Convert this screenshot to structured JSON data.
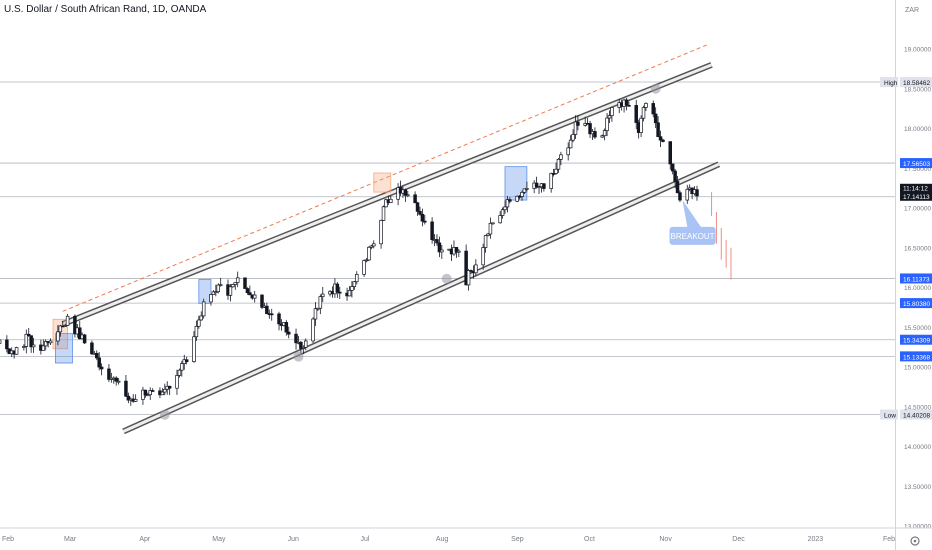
{
  "header": {
    "title": "U.S. Dollar / South African Rand, 1D, OANDA"
  },
  "axis": {
    "currency_label": "ZAR",
    "time_badge": "11:14:12",
    "corner_icon": "settings-gear-icon"
  },
  "colors": {
    "candle_fill": "#131722",
    "candle_hollow": "#ffffff",
    "channel": "#555555",
    "upper_dashed": "#f07a50",
    "box_orange": "#f5a97f",
    "box_blue": "#5b8fe8",
    "level_line": "#b2b5be",
    "badge_blue": "#2962ff",
    "projection": "#f28b82",
    "callout": "#a9c3f5",
    "pivot_marker": "#9598a1"
  },
  "chart_data": {
    "type": "candlestick",
    "title": "U.S. Dollar / South African Rand, 1D, OANDA",
    "symbol": "USDZAR",
    "interval": "1D",
    "source": "OANDA",
    "ylim": [
      12.95,
      19.55
    ],
    "y_ticks": [
      "13.00000",
      "13.50000",
      "14.00000",
      "14.50000",
      "15.00000",
      "15.50000",
      "16.00000",
      "16.50000",
      "17.00000",
      "17.50000",
      "18.00000",
      "18.50000",
      "19.00000"
    ],
    "x_ticks": [
      {
        "label": "Feb",
        "day": 0
      },
      {
        "label": "Mar",
        "day": 28
      },
      {
        "label": "Apr",
        "day": 59
      },
      {
        "label": "May",
        "day": 89
      },
      {
        "label": "Jun",
        "day": 120
      },
      {
        "label": "Jul",
        "day": 150
      },
      {
        "label": "Aug",
        "day": 181
      },
      {
        "label": "Sep",
        "day": 212
      },
      {
        "label": "Oct",
        "day": 242
      },
      {
        "label": "Nov",
        "day": 273
      },
      {
        "label": "Dec",
        "day": 303
      },
      {
        "label": "2023",
        "day": 334
      },
      {
        "label": "Feb",
        "day": 365
      }
    ],
    "anchors": [
      {
        "day": -12,
        "close": 15.3
      },
      {
        "day": -8,
        "close": 15.55
      },
      {
        "day": -3,
        "close": 15.35
      },
      {
        "day": 4,
        "close": 15.18
      },
      {
        "day": 10,
        "close": 15.35
      },
      {
        "day": 16,
        "close": 15.22
      },
      {
        "day": 22,
        "close": 15.45
      },
      {
        "day": 27,
        "close": 15.6
      },
      {
        "day": 33,
        "close": 15.35
      },
      {
        "day": 40,
        "close": 15.05
      },
      {
        "day": 47,
        "close": 14.8
      },
      {
        "day": 53,
        "close": 14.55
      },
      {
        "day": 59,
        "close": 14.7
      },
      {
        "day": 65,
        "close": 14.6
      },
      {
        "day": 70,
        "close": 14.85
      },
      {
        "day": 76,
        "close": 15.1
      },
      {
        "day": 82,
        "close": 15.7
      },
      {
        "day": 88,
        "close": 16.0
      },
      {
        "day": 93,
        "close": 15.95
      },
      {
        "day": 98,
        "close": 16.1
      },
      {
        "day": 104,
        "close": 15.9
      },
      {
        "day": 110,
        "close": 15.7
      },
      {
        "day": 115,
        "close": 15.55
      },
      {
        "day": 120,
        "close": 15.4
      },
      {
        "day": 124,
        "close": 15.25
      },
      {
        "day": 129,
        "close": 15.7
      },
      {
        "day": 133,
        "close": 15.95
      },
      {
        "day": 138,
        "close": 16.0
      },
      {
        "day": 143,
        "close": 15.95
      },
      {
        "day": 148,
        "close": 16.3
      },
      {
        "day": 153,
        "close": 16.55
      },
      {
        "day": 158,
        "close": 17.05
      },
      {
        "day": 163,
        "close": 17.2
      },
      {
        "day": 168,
        "close": 17.1
      },
      {
        "day": 173,
        "close": 16.85
      },
      {
        "day": 178,
        "close": 16.55
      },
      {
        "day": 183,
        "close": 16.45
      },
      {
        "day": 188,
        "close": 16.5
      },
      {
        "day": 191,
        "close": 16.1
      },
      {
        "day": 195,
        "close": 16.3
      },
      {
        "day": 200,
        "close": 16.7
      },
      {
        "day": 206,
        "close": 17.0
      },
      {
        "day": 212,
        "close": 17.15
      },
      {
        "day": 217,
        "close": 17.3
      },
      {
        "day": 222,
        "close": 17.25
      },
      {
        "day": 227,
        "close": 17.5
      },
      {
        "day": 232,
        "close": 17.7
      },
      {
        "day": 236,
        "close": 18.05
      },
      {
        "day": 241,
        "close": 18.0
      },
      {
        "day": 245,
        "close": 17.8
      },
      {
        "day": 249,
        "close": 18.1
      },
      {
        "day": 254,
        "close": 18.35
      },
      {
        "day": 258,
        "close": 18.25
      },
      {
        "day": 262,
        "close": 18.0
      },
      {
        "day": 266,
        "close": 18.4
      },
      {
        "day": 270,
        "close": 17.95
      },
      {
        "day": 275,
        "close": 17.55
      },
      {
        "day": 279,
        "close": 17.15
      },
      {
        "day": 282,
        "close": 17.2
      },
      {
        "day": 285,
        "close": 17.18
      },
      {
        "day": 288,
        "close": 17.12
      }
    ],
    "channel": {
      "upper": [
        {
          "day": 25,
          "value": 15.54
        },
        {
          "day": 292,
          "value": 18.8
        }
      ],
      "lower": [
        {
          "day": 50,
          "value": 14.19
        },
        {
          "day": 295,
          "value": 17.55
        }
      ],
      "upper_dashed": [
        {
          "day": 25,
          "value": 15.7
        },
        {
          "day": 290,
          "value": 19.05
        }
      ]
    },
    "boxes": [
      {
        "day0": 21,
        "day1": 27,
        "low": 15.23,
        "high": 15.6,
        "color": "orange"
      },
      {
        "day0": 22,
        "day1": 29,
        "low": 15.05,
        "high": 15.42,
        "color": "blue"
      },
      {
        "day0": 81,
        "day1": 86,
        "low": 15.8,
        "high": 16.1,
        "color": "blue"
      },
      {
        "day0": 153,
        "day1": 160,
        "low": 17.2,
        "high": 17.44,
        "color": "orange"
      },
      {
        "day0": 207,
        "day1": 216,
        "low": 17.1,
        "high": 17.52,
        "color": "blue"
      }
    ],
    "pivots": [
      {
        "day": 67,
        "value": 14.4
      },
      {
        "day": 122,
        "value": 15.13
      },
      {
        "day": 183,
        "value": 16.11
      },
      {
        "day": 269,
        "value": 18.5
      }
    ],
    "levels": [
      {
        "value": 18.58462,
        "label": "18.58462",
        "side_label": "High",
        "style": "plain"
      },
      {
        "value": 17.56503,
        "label": "17.56503",
        "style": "badge"
      },
      {
        "value": 17.14113,
        "label": "17.14113",
        "style": "dark"
      },
      {
        "value": 16.11373,
        "label": "16.11373",
        "style": "badge"
      },
      {
        "value": 15.8038,
        "label": "15.80380",
        "style": "badge"
      },
      {
        "value": 15.34309,
        "label": "15.34309",
        "style": "badge"
      },
      {
        "value": 15.13368,
        "label": "15.13368",
        "style": "badge"
      },
      {
        "value": 14.40208,
        "label": "14.40208",
        "side_label": "Low",
        "style": "plain"
      }
    ],
    "projection": [
      {
        "day": 292,
        "low": 16.9,
        "high": 17.2
      },
      {
        "day": 294,
        "low": 16.55,
        "high": 16.95
      },
      {
        "day": 296,
        "low": 16.35,
        "high": 16.75
      },
      {
        "day": 298,
        "low": 16.25,
        "high": 16.6
      },
      {
        "day": 300,
        "low": 16.1,
        "high": 16.5
      }
    ],
    "annotations": [
      {
        "text": "BREAKOUT",
        "day": 278,
        "value": 16.65
      }
    ]
  }
}
